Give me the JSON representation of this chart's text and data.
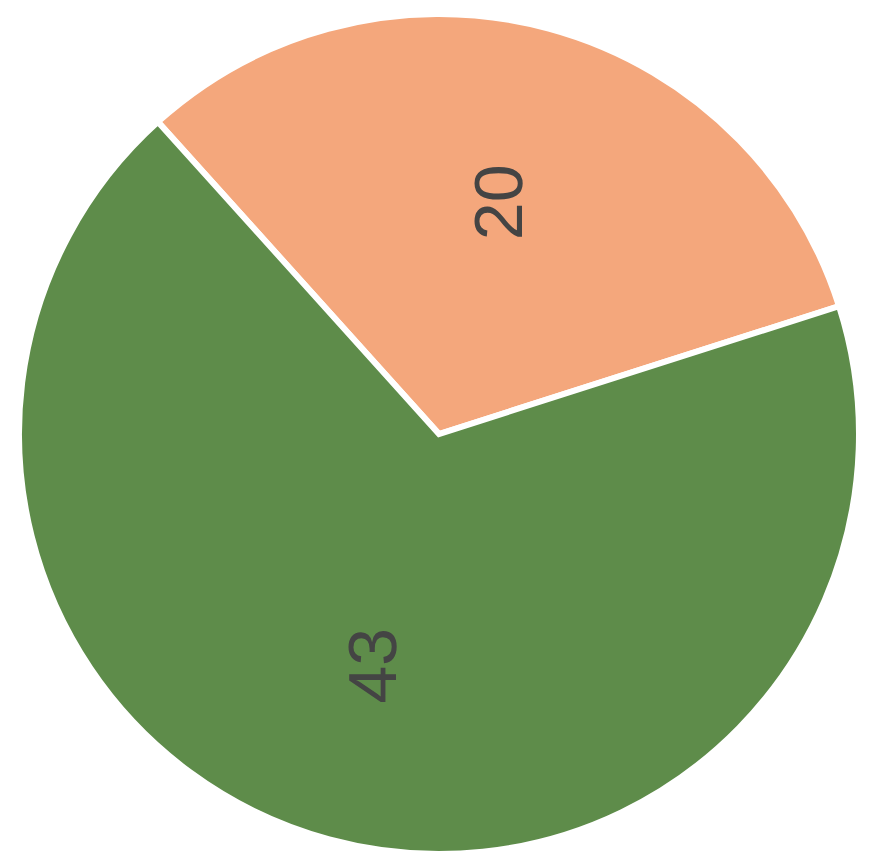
{
  "chart_data": {
    "type": "pie",
    "categories": [
      null,
      null
    ],
    "values": [
      20,
      43
    ],
    "colors": [
      "#f4a77c",
      "#5e8c4a"
    ],
    "data_labels": true
  }
}
